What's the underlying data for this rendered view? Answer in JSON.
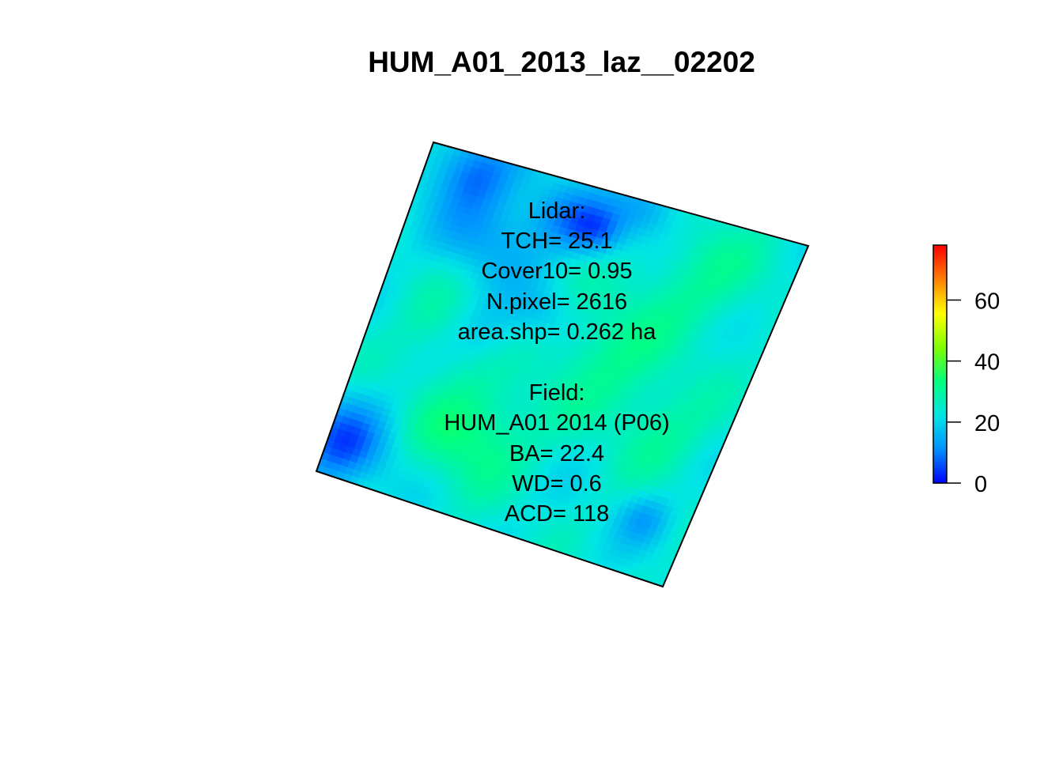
{
  "chart_data": {
    "type": "heatmap",
    "title": "HUM_A01_2013_laz__02202",
    "colorbar": {
      "range": [
        0,
        78
      ],
      "ticks": [
        "0",
        "20",
        "40",
        "60"
      ],
      "tick_values": [
        0,
        20,
        40,
        60
      ],
      "colors": [
        "#0000ff",
        "#0090ff",
        "#00e5e5",
        "#00ff80",
        "#80ff00",
        "#ffff00",
        "#ff8000",
        "#ff0000"
      ]
    },
    "annotation_lines": [
      "Lidar:",
      "TCH= 25.1",
      "Cover10= 0.95",
      "N.pixel= 2616",
      "area.shp= 0.262 ha",
      "",
      "Field:",
      "HUM_A01 2014 (P06)",
      "BA= 22.4",
      "WD= 0.6",
      "ACD= 118"
    ],
    "summary": {
      "TCH": 25.1,
      "Cover10": 0.95,
      "N_pixel": 2616,
      "area_shp_ha": 0.262,
      "field_plot": "HUM_A01 2014 (P06)",
      "BA": 22.4,
      "WD": 0.6,
      "ACD": 118
    },
    "grid": false
  }
}
